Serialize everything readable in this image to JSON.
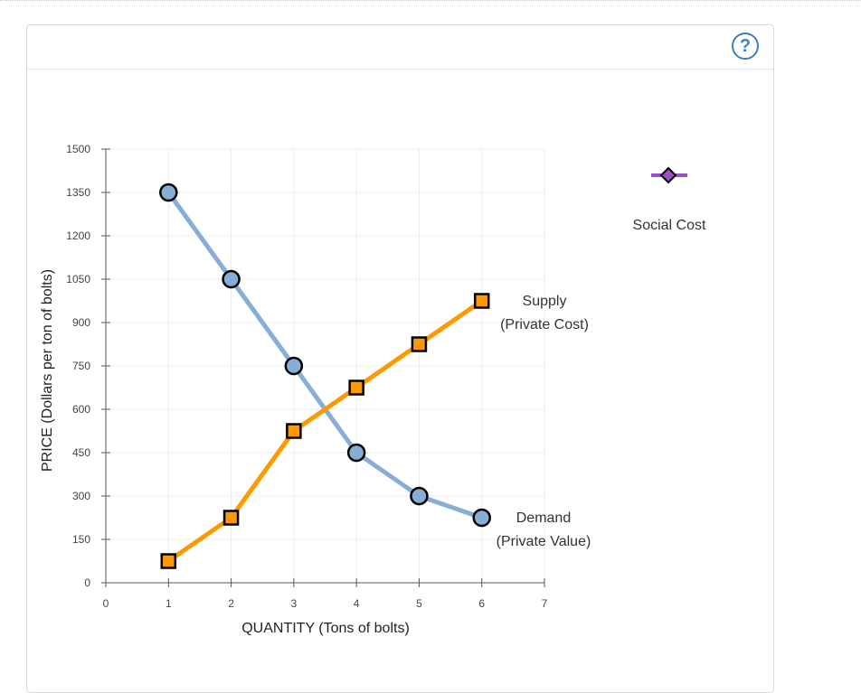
{
  "help": {
    "label": "?"
  },
  "colors": {
    "supply": "#ff9900",
    "demand": "#86aed6",
    "social_cost": "#9b4dca"
  },
  "legend": {
    "social_cost_label": "Social Cost"
  },
  "chart_data": {
    "type": "line",
    "xlabel": "QUANTITY (Tons of bolts)",
    "ylabel": "PRICE (Dollars per ton of bolts)",
    "xlim": [
      0,
      7
    ],
    "ylim": [
      0,
      1500
    ],
    "xticks": [
      0,
      1,
      2,
      3,
      4,
      5,
      6,
      7
    ],
    "yticks": [
      0,
      150,
      300,
      450,
      600,
      750,
      900,
      1050,
      1200,
      1350,
      1500
    ],
    "grid": true,
    "series": [
      {
        "key": "demand",
        "label_line1": "Demand",
        "label_line2": "(Private Value)",
        "marker": "circle",
        "x": [
          1,
          2,
          3,
          4,
          5,
          6
        ],
        "y": [
          1350,
          1050,
          750,
          450,
          300,
          225
        ]
      },
      {
        "key": "supply",
        "label_line1": "Supply",
        "label_line2": "(Private Cost)",
        "marker": "square",
        "x": [
          1,
          2,
          3,
          4,
          5,
          6
        ],
        "y": [
          75,
          225,
          525,
          675,
          825,
          975
        ]
      }
    ]
  }
}
